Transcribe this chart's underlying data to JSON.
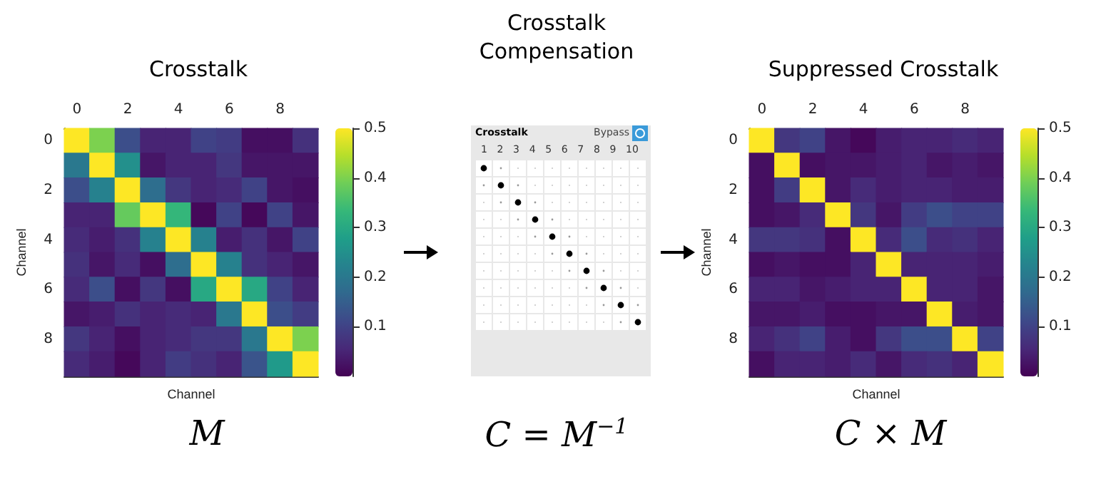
{
  "chart_data": [
    {
      "type": "heatmap",
      "title": "Crosstalk",
      "xlabel": "Channel",
      "ylabel": "Channel",
      "annotations": [
        "M"
      ],
      "categories": [
        "0",
        null,
        "2",
        null,
        "4",
        null,
        "6",
        null,
        "8",
        null
      ],
      "y_categories": [
        "0",
        null,
        "2",
        null,
        "4",
        null,
        "6",
        null,
        "8",
        null
      ],
      "cells": [
        [
          0.5,
          0.4,
          0.12,
          0.05,
          0.05,
          0.1,
          0.09,
          0.02,
          0.02,
          0.07
        ],
        [
          0.2,
          0.5,
          0.25,
          0.03,
          0.05,
          0.05,
          0.08,
          0.03,
          0.03,
          0.03
        ],
        [
          0.12,
          0.22,
          0.5,
          0.18,
          0.08,
          0.05,
          0.06,
          0.1,
          0.03,
          0.02
        ],
        [
          0.05,
          0.05,
          0.38,
          0.5,
          0.33,
          0.01,
          0.1,
          0.01,
          0.1,
          0.03
        ],
        [
          0.06,
          0.04,
          0.07,
          0.22,
          0.5,
          0.22,
          0.04,
          0.07,
          0.03,
          0.1
        ],
        [
          0.07,
          0.03,
          0.06,
          0.02,
          0.18,
          0.5,
          0.22,
          0.07,
          0.05,
          0.03
        ],
        [
          0.06,
          0.12,
          0.02,
          0.08,
          0.02,
          0.3,
          0.5,
          0.3,
          0.1,
          0.05
        ],
        [
          0.03,
          0.04,
          0.07,
          0.05,
          0.06,
          0.05,
          0.2,
          0.5,
          0.12,
          0.09
        ],
        [
          0.08,
          0.05,
          0.02,
          0.05,
          0.06,
          0.08,
          0.08,
          0.2,
          0.5,
          0.4
        ],
        [
          0.06,
          0.04,
          0.01,
          0.05,
          0.09,
          0.07,
          0.05,
          0.13,
          0.27,
          0.5
        ]
      ],
      "clim": [
        0,
        0.5
      ],
      "cticks": [
        0.1,
        0.2,
        0.3,
        0.4,
        0.5
      ]
    },
    {
      "type": "other",
      "title": "Crosstalk Compensation",
      "annotations": [
        "Crosstalk",
        "Bypass",
        "1 2 3 4 5 6 7 8 9 10",
        "C = M$^{−1}$"
      ]
    },
    {
      "type": "heatmap",
      "title": "Suppressed Crosstalk",
      "xlabel": "Channel",
      "ylabel": "Channel",
      "annotations": [
        "C × M"
      ],
      "categories": [
        "0",
        null,
        "2",
        null,
        "4",
        null,
        "6",
        null,
        "8",
        null
      ],
      "y_categories": [
        "0",
        null,
        "2",
        null,
        "4",
        null,
        "6",
        null,
        "8",
        null
      ],
      "cells": [
        [
          0.5,
          0.08,
          0.1,
          0.03,
          0.01,
          0.04,
          0.05,
          0.05,
          0.06,
          0.05
        ],
        [
          0.02,
          0.5,
          0.02,
          0.03,
          0.03,
          0.04,
          0.05,
          0.03,
          0.04,
          0.03
        ],
        [
          0.02,
          0.09,
          0.5,
          0.03,
          0.06,
          0.04,
          0.05,
          0.05,
          0.04,
          0.04
        ],
        [
          0.02,
          0.03,
          0.06,
          0.5,
          0.08,
          0.03,
          0.09,
          0.12,
          0.1,
          0.1
        ],
        [
          0.08,
          0.08,
          0.07,
          0.02,
          0.5,
          0.06,
          0.12,
          0.06,
          0.07,
          0.05
        ],
        [
          0.02,
          0.03,
          0.02,
          0.02,
          0.05,
          0.5,
          0.05,
          0.05,
          0.05,
          0.04
        ],
        [
          0.05,
          0.05,
          0.03,
          0.04,
          0.05,
          0.05,
          0.5,
          0.05,
          0.05,
          0.03
        ],
        [
          0.03,
          0.03,
          0.04,
          0.02,
          0.02,
          0.03,
          0.03,
          0.5,
          0.04,
          0.03
        ],
        [
          0.05,
          0.07,
          0.1,
          0.04,
          0.02,
          0.08,
          0.12,
          0.12,
          0.5,
          0.1
        ],
        [
          0.02,
          0.05,
          0.05,
          0.04,
          0.06,
          0.03,
          0.06,
          0.07,
          0.05,
          0.5
        ]
      ],
      "clim": [
        0,
        0.5
      ],
      "cticks": [
        0.1,
        0.2,
        0.3,
        0.4,
        0.5
      ]
    }
  ]
}
